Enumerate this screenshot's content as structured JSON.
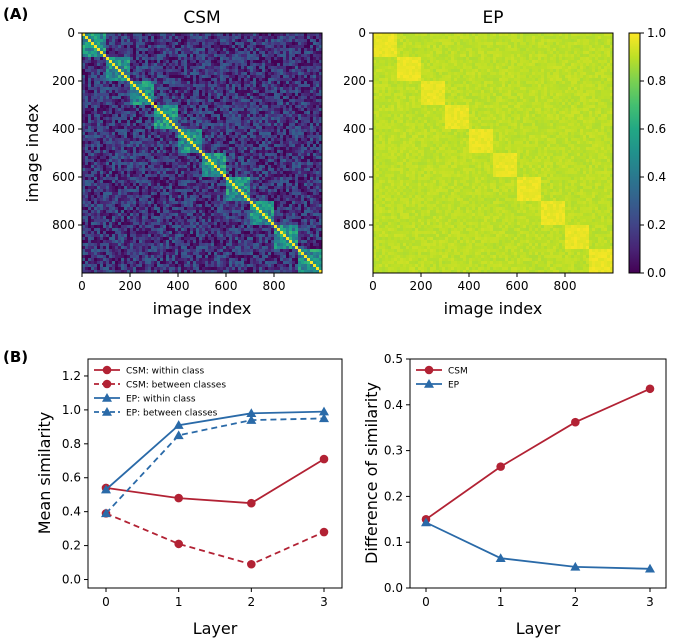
{
  "panel_labels": {
    "a": "A",
    "b": "B"
  },
  "chart_data": [
    {
      "type": "heatmap",
      "title": "CSM",
      "xlabel": "image index",
      "ylabel": "image index",
      "x_ticks": [
        0,
        200,
        400,
        600,
        800
      ],
      "y_ticks": [
        0,
        200,
        400,
        600,
        800
      ],
      "n": 1000,
      "class_size": 100,
      "n_classes": 10,
      "vmin": 0.0,
      "vmax": 1.0,
      "colormap": "viridis",
      "within_class_level": 0.5,
      "between_class_level": 0.15,
      "diagonal_value": 1.0
    },
    {
      "type": "heatmap",
      "title": "EP",
      "xlabel": "image index",
      "ylabel": "",
      "x_ticks": [
        0,
        200,
        400,
        600,
        800
      ],
      "y_ticks": [
        0,
        200,
        400,
        600,
        800
      ],
      "n": 1000,
      "class_size": 100,
      "n_classes": 10,
      "vmin": 0.0,
      "vmax": 1.0,
      "colormap": "viridis",
      "within_class_level": 0.97,
      "between_class_level": 0.9,
      "colorbar_ticks": [
        "0.0",
        "0.2",
        "0.4",
        "0.6",
        "0.8",
        "1.0"
      ]
    },
    {
      "type": "line",
      "xlabel": "Layer",
      "ylabel": "Mean similarity",
      "x": [
        0,
        1,
        2,
        3
      ],
      "ylim": [
        -0.05,
        1.3
      ],
      "yticks": [
        "0.0",
        "0.2",
        "0.4",
        "0.6",
        "0.8",
        "1.0",
        "1.2"
      ],
      "legend_position": "top-left",
      "series": [
        {
          "name": "CSM: within class",
          "values": [
            0.54,
            0.48,
            0.45,
            0.71
          ],
          "color": "#b22234",
          "marker": "circle",
          "dash": false
        },
        {
          "name": "CSM: between classes",
          "values": [
            0.39,
            0.21,
            0.09,
            0.28
          ],
          "color": "#b22234",
          "marker": "circle",
          "dash": true
        },
        {
          "name": "EP: within class",
          "values": [
            0.53,
            0.91,
            0.98,
            0.99
          ],
          "color": "#2a6aa8",
          "marker": "triangle",
          "dash": false
        },
        {
          "name": "EP: between classes",
          "values": [
            0.39,
            0.85,
            0.94,
            0.95
          ],
          "color": "#2a6aa8",
          "marker": "triangle",
          "dash": true
        }
      ]
    },
    {
      "type": "line",
      "xlabel": "Layer",
      "ylabel": "Difference of similarity",
      "x": [
        0,
        1,
        2,
        3
      ],
      "ylim": [
        0.0,
        0.5
      ],
      "yticks": [
        "0.0",
        "0.1",
        "0.2",
        "0.3",
        "0.4",
        "0.5"
      ],
      "legend_position": "top-left",
      "series": [
        {
          "name": "CSM",
          "values": [
            0.15,
            0.265,
            0.362,
            0.435
          ],
          "color": "#b22234",
          "marker": "circle",
          "dash": false
        },
        {
          "name": "EP",
          "values": [
            0.143,
            0.065,
            0.046,
            0.042
          ],
          "color": "#2a6aa8",
          "marker": "triangle",
          "dash": false
        }
      ]
    }
  ]
}
